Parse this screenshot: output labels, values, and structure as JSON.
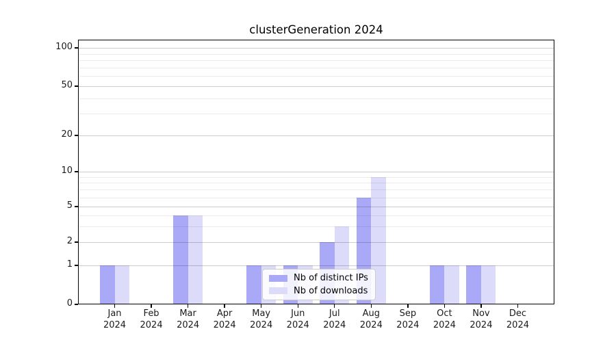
{
  "figure": {
    "background": "#ffffff"
  },
  "chart_data": {
    "type": "bar",
    "title": "clusterGeneration 2024",
    "x_categories_month": [
      "Jan",
      "Feb",
      "Mar",
      "Apr",
      "May",
      "Jun",
      "Jul",
      "Aug",
      "Sep",
      "Oct",
      "Nov",
      "Dec"
    ],
    "x_year": "2024",
    "series": [
      {
        "name": "Nb of distinct IPs",
        "color": "#a9a9f8",
        "values": [
          1,
          0,
          4,
          0,
          1,
          1,
          2,
          6,
          0,
          1,
          1,
          0
        ]
      },
      {
        "name": "Nb of downloads",
        "color": "#dcdcfa",
        "values": [
          1,
          0,
          4,
          0,
          1,
          1,
          3,
          9,
          0,
          1,
          1,
          0
        ]
      }
    ],
    "y_axis": {
      "scale": "symlog",
      "ticks": [
        0,
        1,
        2,
        5,
        10,
        20,
        50,
        100
      ],
      "minor_gridlines": [
        3,
        4,
        6,
        7,
        8,
        9,
        30,
        40,
        60,
        70,
        80,
        90
      ],
      "ylim": [
        0,
        100
      ]
    },
    "xlabel": "",
    "ylabel": "",
    "grid": true,
    "legend_position": "lower center"
  }
}
